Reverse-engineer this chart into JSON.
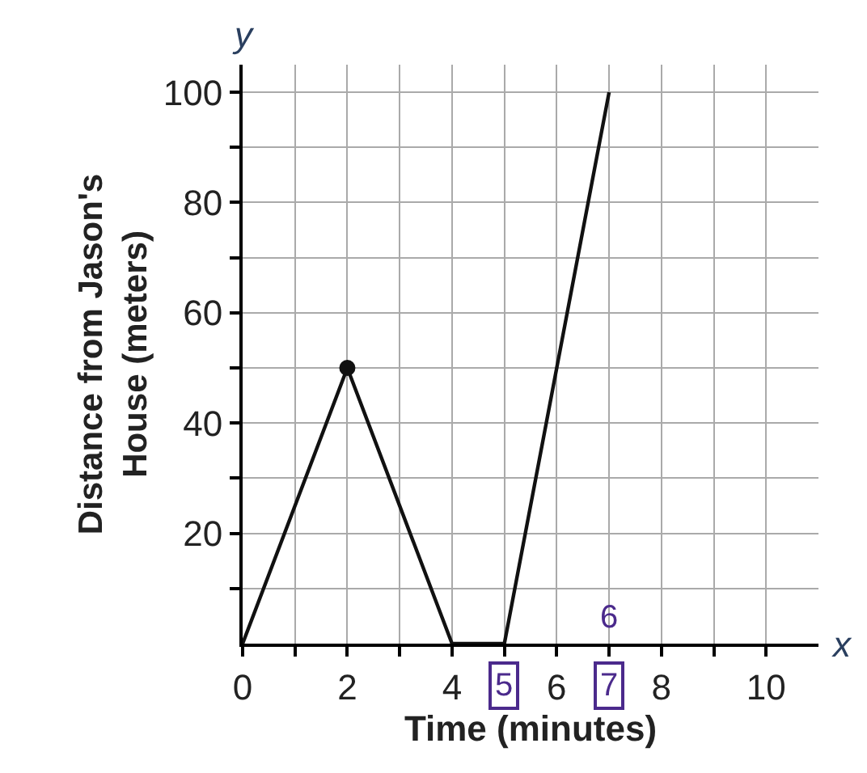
{
  "chart_data": {
    "type": "line",
    "xlabel": "Time (minutes)",
    "ylabel": "Distance from Jason's\nHouse (meters)",
    "x": [
      0,
      2,
      4,
      5,
      7
    ],
    "series": [
      {
        "color": "#111111",
        "values": [
          0,
          50,
          0,
          0,
          100
        ],
        "marker": "none"
      },
      {
        "type": "scatter",
        "color": "#111111",
        "x": [
          2
        ],
        "values": [
          50
        ],
        "marker": "circle"
      }
    ],
    "xlim": [
      0,
      11
    ],
    "ylim": [
      0,
      105
    ],
    "xticks": [
      0,
      {
        "value": 1,
        "label": null
      },
      2,
      {
        "value": 3,
        "label": null
      },
      4,
      {
        "value": 5,
        "label": null
      },
      6,
      {
        "value": 7,
        "label": null
      },
      8,
      {
        "value": 9,
        "label": null
      },
      10
    ],
    "yticks": [
      {
        "value": 10,
        "label": null
      },
      20,
      {
        "value": 30,
        "label": null
      },
      40,
      {
        "value": 50,
        "label": null
      },
      60,
      {
        "value": 70,
        "label": null
      },
      80,
      {
        "value": 90,
        "label": null
      },
      100
    ],
    "grid": true,
    "annotations": [
      "x",
      "y",
      {
        "text": "5",
        "x": 5,
        "y": 0
      },
      "7",
      "6"
    ]
  }
}
